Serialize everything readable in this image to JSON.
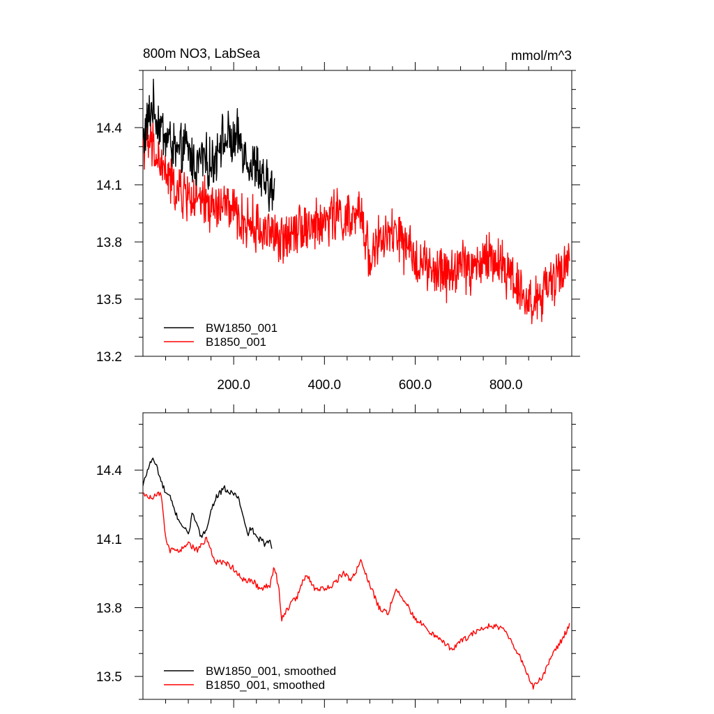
{
  "chart_data": [
    {
      "type": "line",
      "title": "800m NO3, LabSea",
      "units": "mmol/m^3",
      "xlim": [
        0,
        945
      ],
      "ylim": [
        13.2,
        14.7
      ],
      "x_ticks": [
        200,
        400,
        600,
        800
      ],
      "x_tick_labels": [
        "200.0",
        "400.0",
        "600.0",
        "800.0"
      ],
      "y_ticks": [
        13.2,
        13.5,
        13.8,
        14.1,
        14.4
      ],
      "y_tick_labels": [
        "13.2",
        "13.5",
        "13.8",
        "14.1",
        "14.4"
      ],
      "grid": false,
      "legend_position": "bottom-left",
      "series": [
        {
          "name": "BW1850_001",
          "color": "#000000",
          "x": [
            0,
            10,
            20,
            30,
            40,
            50,
            60,
            70,
            80,
            90,
            100,
            110,
            120,
            130,
            140,
            150,
            160,
            170,
            180,
            190,
            200,
            210,
            220,
            230,
            240,
            250,
            260,
            270,
            280,
            290
          ],
          "values": [
            14.33,
            14.42,
            14.52,
            14.45,
            14.4,
            14.35,
            14.33,
            14.28,
            14.25,
            14.3,
            14.28,
            14.22,
            14.2,
            14.25,
            14.22,
            14.2,
            14.25,
            14.35,
            14.32,
            14.35,
            14.3,
            14.35,
            14.3,
            14.25,
            14.18,
            14.22,
            14.12,
            14.1,
            14.08,
            14.05
          ]
        },
        {
          "name": "B1850_001",
          "color": "#ff0000",
          "x": [
            0,
            20,
            40,
            60,
            80,
            100,
            120,
            140,
            160,
            180,
            200,
            220,
            240,
            260,
            280,
            300,
            320,
            340,
            360,
            380,
            400,
            420,
            440,
            460,
            480,
            500,
            520,
            540,
            560,
            580,
            600,
            620,
            640,
            660,
            680,
            700,
            720,
            740,
            760,
            780,
            800,
            820,
            840,
            860,
            880,
            900,
            920,
            940
          ],
          "values": [
            14.33,
            14.3,
            14.2,
            14.12,
            14.05,
            14.05,
            14.0,
            14.0,
            13.97,
            14.0,
            13.95,
            13.9,
            13.9,
            13.85,
            13.88,
            13.78,
            13.85,
            13.9,
            13.88,
            13.88,
            13.9,
            13.95,
            13.93,
            13.9,
            13.95,
            13.72,
            13.8,
            13.82,
            13.85,
            13.75,
            13.72,
            13.68,
            13.62,
            13.65,
            13.62,
            13.7,
            13.65,
            13.68,
            13.72,
            13.7,
            13.65,
            13.62,
            13.5,
            13.48,
            13.52,
            13.58,
            13.65,
            13.72
          ]
        }
      ]
    },
    {
      "type": "line",
      "xlim": [
        0,
        945
      ],
      "ylim": [
        13.4,
        14.65
      ],
      "y_ticks": [
        13.5,
        13.8,
        14.1,
        14.4
      ],
      "y_tick_labels": [
        "13.5",
        "13.8",
        "14.1",
        "14.4"
      ],
      "grid": false,
      "legend_position": "bottom-left",
      "series": [
        {
          "name": "BW1850_001, smoothed",
          "color": "#000000",
          "x": [
            0,
            10,
            20,
            30,
            40,
            50,
            60,
            70,
            80,
            90,
            100,
            110,
            120,
            130,
            140,
            150,
            160,
            170,
            180,
            190,
            200,
            210,
            220,
            230,
            240,
            250,
            260,
            270,
            280,
            285
          ],
          "values": [
            14.33,
            14.4,
            14.45,
            14.42,
            14.35,
            14.3,
            14.28,
            14.22,
            14.18,
            14.15,
            14.12,
            14.22,
            14.15,
            14.1,
            14.15,
            14.22,
            14.28,
            14.3,
            14.32,
            14.3,
            14.3,
            14.28,
            14.2,
            14.12,
            14.15,
            14.1,
            14.1,
            14.07,
            14.1,
            14.06
          ]
        },
        {
          "name": "B1850_001, smoothed",
          "color": "#ff0000",
          "x": [
            0,
            20,
            40,
            50,
            60,
            80,
            100,
            120,
            140,
            160,
            180,
            200,
            220,
            240,
            260,
            280,
            290,
            300,
            305,
            320,
            340,
            360,
            380,
            400,
            420,
            440,
            460,
            480,
            490,
            500,
            520,
            540,
            560,
            580,
            600,
            620,
            640,
            660,
            680,
            700,
            720,
            740,
            760,
            780,
            800,
            820,
            840,
            860,
            880,
            900,
            920,
            940
          ],
          "values": [
            14.3,
            14.28,
            14.3,
            14.1,
            14.05,
            14.05,
            14.08,
            14.05,
            14.1,
            14.0,
            14.0,
            13.97,
            13.92,
            13.92,
            13.88,
            13.9,
            13.98,
            13.88,
            13.75,
            13.8,
            13.85,
            13.95,
            13.88,
            13.88,
            13.9,
            13.95,
            13.92,
            14.0,
            13.95,
            13.9,
            13.8,
            13.78,
            13.88,
            13.82,
            13.75,
            13.72,
            13.68,
            13.65,
            13.62,
            13.65,
            13.68,
            13.7,
            13.72,
            13.72,
            13.7,
            13.62,
            13.55,
            13.45,
            13.5,
            13.58,
            13.65,
            13.72
          ]
        }
      ]
    }
  ]
}
